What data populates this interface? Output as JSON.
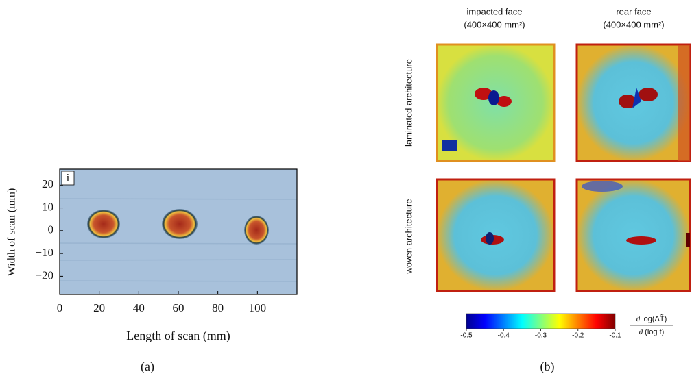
{
  "panel_a": {
    "inset_label": "i",
    "x_axis": {
      "label": "Length of scan (mm)",
      "lim": [
        0,
        120
      ],
      "ticks": [
        0,
        20,
        40,
        60,
        80,
        100
      ]
    },
    "y_axis": {
      "label": "Width of scan (mm)",
      "lim": [
        -28,
        27
      ],
      "ticks": [
        {
          "value": -20,
          "label": "−20"
        },
        {
          "value": -10,
          "label": "−10"
        },
        0,
        10,
        20
      ]
    },
    "caption": "(a)"
  },
  "panel_b": {
    "columns": [
      {
        "title": "impacted face",
        "size": "(400×400 mm²)"
      },
      {
        "title": "rear face",
        "size": "(400×400 mm²)"
      }
    ],
    "rows": [
      "laminated architecture",
      "woven architecture"
    ],
    "colorbar": {
      "lim": [
        -0.5,
        -0.1
      ],
      "ticks": [
        -0.5,
        -0.4,
        -0.3,
        -0.2,
        -0.1
      ],
      "numerator": "∂ log(ΔT̃)",
      "denominator": "∂ (log t)"
    },
    "caption": "(b)"
  }
}
